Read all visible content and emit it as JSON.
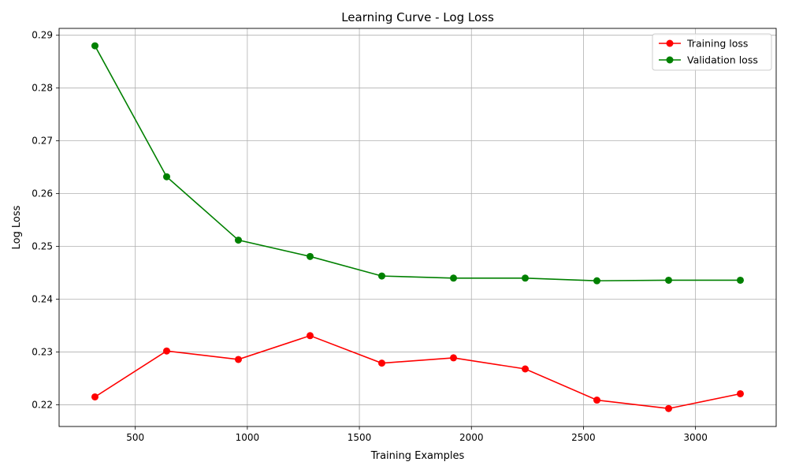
{
  "chart_data": {
    "type": "line",
    "title": "Learning Curve - Log Loss",
    "xlabel": "Training Examples",
    "ylabel": "Log Loss",
    "xlim": [
      160,
      3360
    ],
    "ylim": [
      0.2159,
      0.2913
    ],
    "xticks": [
      500,
      1000,
      1500,
      2000,
      2500,
      3000
    ],
    "yticks": [
      0.22,
      0.23,
      0.24,
      0.25,
      0.26,
      0.27,
      0.28,
      0.29
    ],
    "xtick_labels": [
      "500",
      "1000",
      "1500",
      "2000",
      "2500",
      "3000"
    ],
    "ytick_labels": [
      "0.22",
      "0.23",
      "0.24",
      "0.25",
      "0.26",
      "0.27",
      "0.28",
      "0.29"
    ],
    "grid": true,
    "legend_position": "top-right",
    "x": [
      320,
      640,
      960,
      1280,
      1600,
      1920,
      2240,
      2560,
      2880,
      3200
    ],
    "series": [
      {
        "name": "Training loss",
        "color": "#ff0000",
        "values": [
          0.2215,
          0.2302,
          0.2286,
          0.2331,
          0.2279,
          0.2289,
          0.2268,
          0.2209,
          0.2193,
          0.2221
        ]
      },
      {
        "name": "Validation loss",
        "color": "#008000",
        "values": [
          0.288,
          0.2632,
          0.2512,
          0.2481,
          0.2444,
          0.244,
          0.244,
          0.2435,
          0.2436,
          0.2436
        ]
      }
    ]
  }
}
